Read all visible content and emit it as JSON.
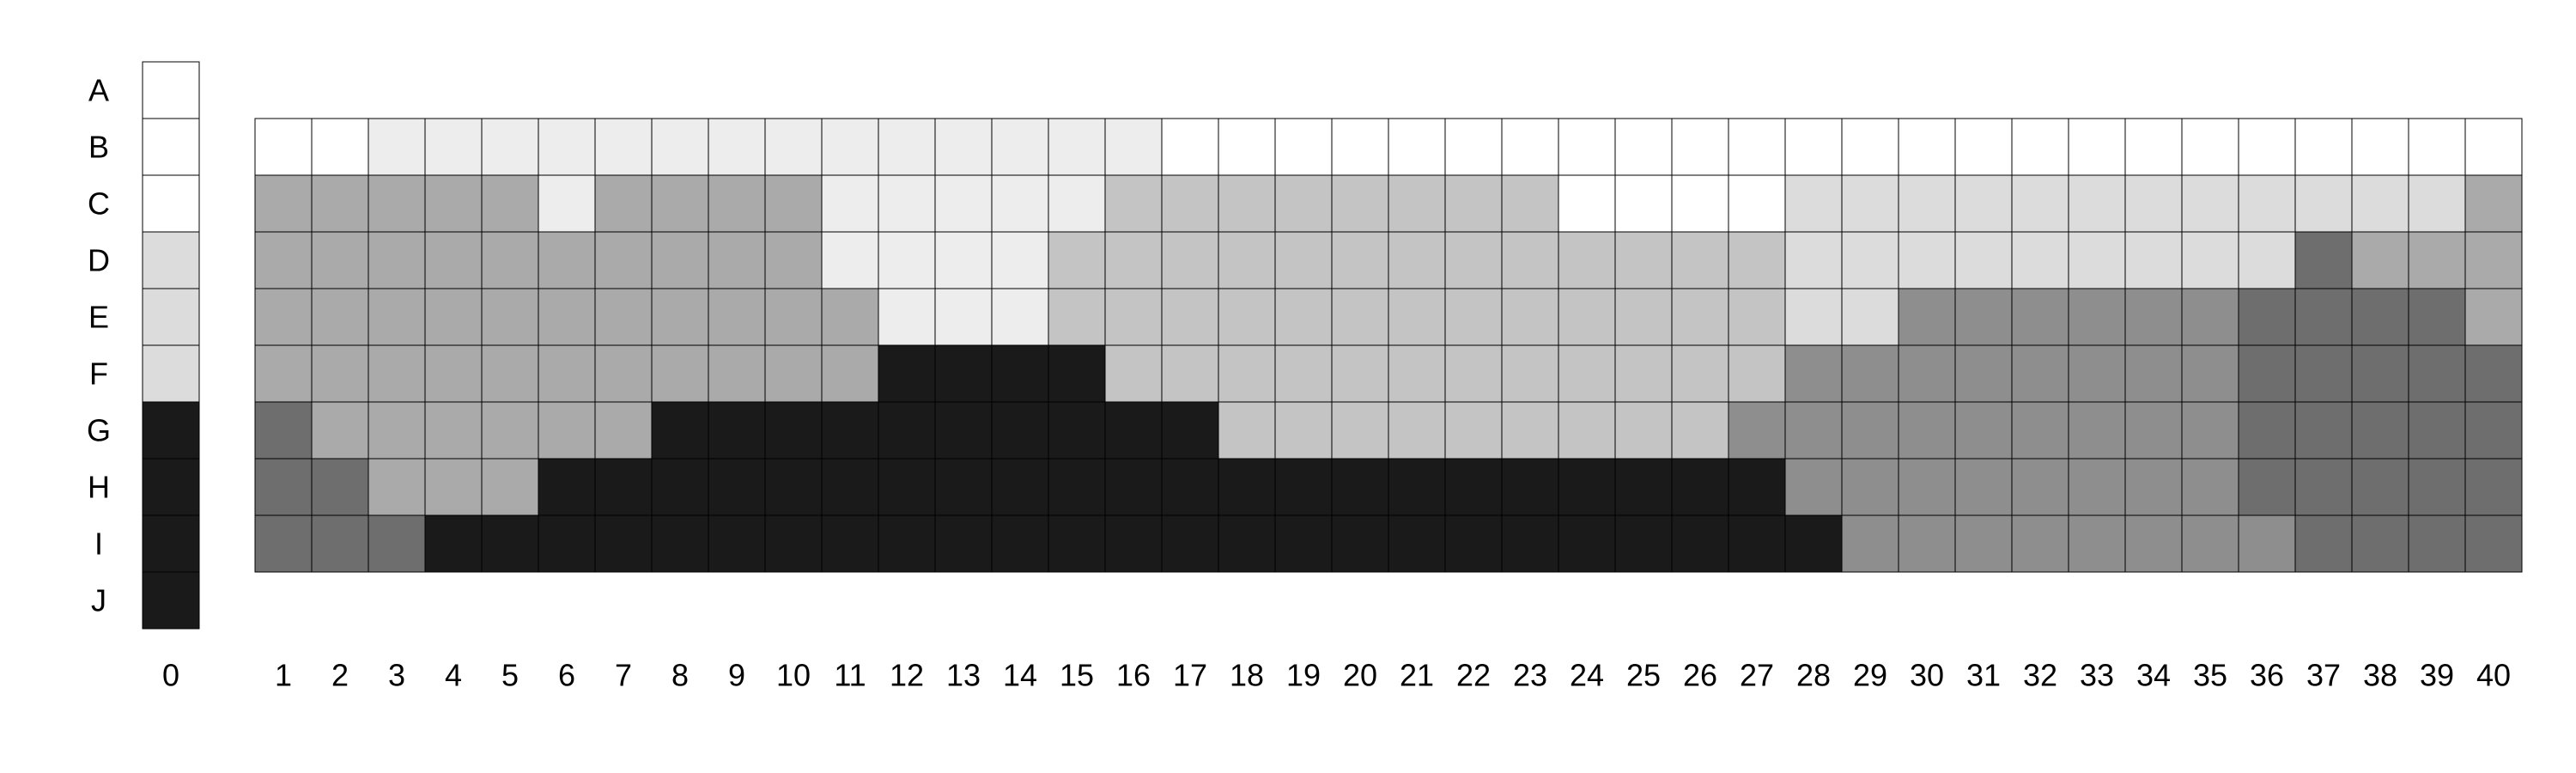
{
  "chart_data": {
    "type": "heatmap",
    "title": "",
    "rows": [
      "A",
      "B",
      "C",
      "D",
      "E",
      "F",
      "G",
      "H",
      "I",
      "J"
    ],
    "key_column": {
      "label": "0",
      "values": [
        1,
        1,
        1,
        2,
        2,
        2,
        6,
        6,
        6,
        6
      ]
    },
    "columns": [
      "1",
      "2",
      "3",
      "4",
      "5",
      "6",
      "7",
      "8",
      "9",
      "10",
      "11",
      "12",
      "13",
      "14",
      "15",
      "16",
      "17",
      "18",
      "19",
      "20",
      "21",
      "22",
      "23",
      "24",
      "25",
      "26",
      "27",
      "28",
      "29",
      "30",
      "31",
      "32",
      "33",
      "34",
      "35",
      "36",
      "37",
      "38",
      "39",
      "40"
    ],
    "matrix_rows": [
      "B",
      "C",
      "D",
      "E",
      "F",
      "G",
      "H",
      "I"
    ],
    "matrix": [
      [
        1,
        1,
        7,
        7,
        7,
        7,
        7,
        7,
        7,
        7,
        7,
        7,
        7,
        7,
        7,
        7,
        1,
        1,
        1,
        1,
        1,
        1,
        1,
        1,
        1,
        1,
        1,
        1,
        1,
        1,
        1,
        1,
        1,
        1,
        1,
        1,
        1,
        1,
        1,
        1
      ],
      [
        3,
        3,
        3,
        3,
        3,
        7,
        3,
        3,
        3,
        3,
        7,
        7,
        7,
        7,
        7,
        4,
        4,
        4,
        4,
        4,
        4,
        4,
        4,
        1,
        1,
        1,
        1,
        2,
        2,
        2,
        2,
        2,
        2,
        2,
        2,
        2,
        2,
        2,
        2,
        3
      ],
      [
        3,
        3,
        3,
        3,
        3,
        3,
        3,
        3,
        3,
        3,
        7,
        7,
        7,
        7,
        4,
        4,
        4,
        4,
        4,
        4,
        4,
        4,
        4,
        4,
        4,
        4,
        4,
        2,
        2,
        2,
        2,
        2,
        2,
        2,
        2,
        2,
        5,
        3,
        3,
        3
      ],
      [
        3,
        3,
        3,
        3,
        3,
        3,
        3,
        3,
        3,
        3,
        3,
        7,
        7,
        7,
        4,
        4,
        4,
        4,
        4,
        4,
        4,
        4,
        4,
        4,
        4,
        4,
        4,
        2,
        2,
        8,
        8,
        8,
        8,
        8,
        8,
        5,
        5,
        5,
        5,
        3
      ],
      [
        3,
        3,
        3,
        3,
        3,
        3,
        3,
        3,
        3,
        3,
        3,
        6,
        6,
        6,
        6,
        4,
        4,
        4,
        4,
        4,
        4,
        4,
        4,
        4,
        4,
        4,
        4,
        8,
        8,
        8,
        8,
        8,
        8,
        8,
        8,
        5,
        5,
        5,
        5,
        5
      ],
      [
        5,
        3,
        3,
        3,
        3,
        3,
        3,
        6,
        6,
        6,
        6,
        6,
        6,
        6,
        6,
        6,
        6,
        4,
        4,
        4,
        4,
        4,
        4,
        4,
        4,
        4,
        8,
        8,
        8,
        8,
        8,
        8,
        8,
        8,
        8,
        5,
        5,
        5,
        5,
        5
      ],
      [
        5,
        5,
        3,
        3,
        3,
        6,
        6,
        6,
        6,
        6,
        6,
        6,
        6,
        6,
        6,
        6,
        6,
        6,
        6,
        6,
        6,
        6,
        6,
        6,
        6,
        6,
        6,
        8,
        8,
        8,
        8,
        8,
        8,
        8,
        8,
        5,
        5,
        5,
        5,
        5
      ],
      [
        5,
        5,
        5,
        6,
        6,
        6,
        6,
        6,
        6,
        6,
        6,
        6,
        6,
        6,
        6,
        6,
        6,
        6,
        6,
        6,
        6,
        6,
        6,
        6,
        6,
        6,
        6,
        6,
        8,
        8,
        8,
        8,
        8,
        8,
        8,
        8,
        5,
        5,
        5,
        5
      ]
    ],
    "colors": {
      "1": "#ffffff",
      "2": "#dcdcdc",
      "3": "#aaaaaa",
      "4": "#c4c4c4",
      "5": "#6e6e6e",
      "6": "#1a1a1a",
      "7": "#ededed",
      "8": "#8e8e8e"
    },
    "grid": true,
    "legend": "none",
    "xlabel": "",
    "ylabel": ""
  }
}
